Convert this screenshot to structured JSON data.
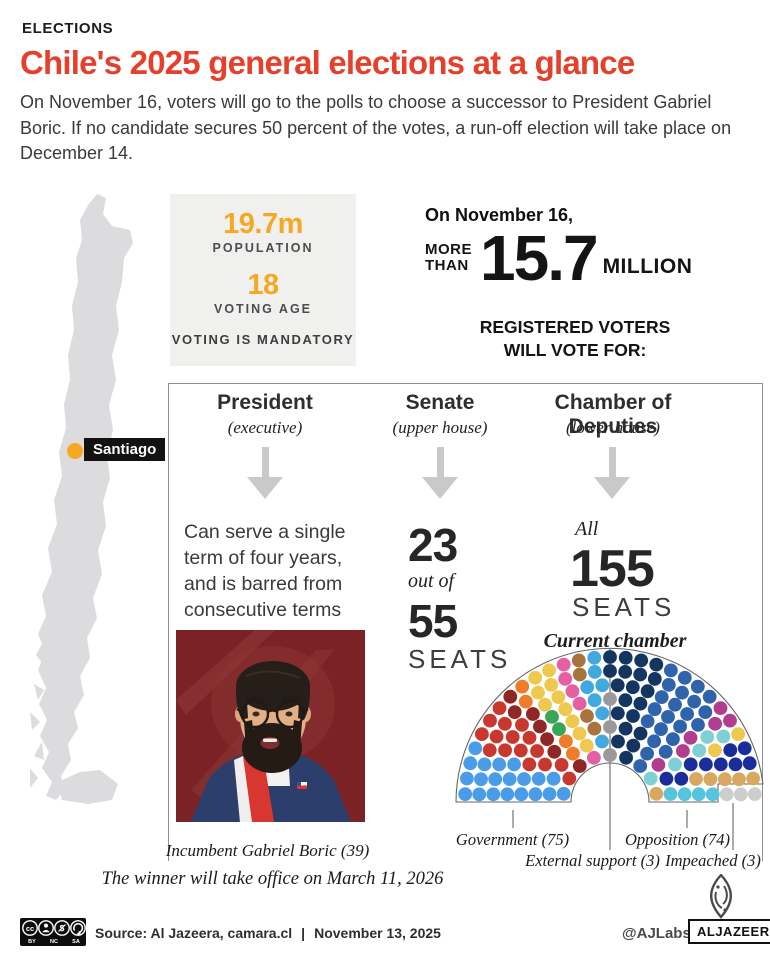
{
  "header": {
    "kicker": "ELECTIONS",
    "title": "Chile's 2025 general elections at a glance",
    "intro": "On November 16, voters will go to the polls to choose a successor to President Gabriel Boric. If no candidate secures 50 percent of the votes, a run-off election will take place on December 14."
  },
  "map": {
    "city_label": "Santiago"
  },
  "stats": {
    "population_value": "19.7m",
    "population_label": "POPULATION",
    "voting_age_value": "18",
    "voting_age_label": "VOTING AGE",
    "mandatory": "VOTING IS MANDATORY"
  },
  "voters": {
    "date": "On November 16,",
    "more": "MORE",
    "than": "THAN",
    "value": "15.7",
    "unit": "MILLION",
    "line1": "REGISTERED VOTERS",
    "line2": "WILL VOTE FOR:"
  },
  "columns": {
    "president": {
      "title": "President",
      "subtitle": "(executive)",
      "description": "Can serve a single term of four years, and is barred from consecutive terms",
      "photo_caption": "Incumbent Gabriel Boric (39)",
      "note": "The winner will take office on March 11, 2026"
    },
    "senate": {
      "title": "Senate",
      "subtitle": "(upper house)",
      "contested": "23",
      "out_of": "out of",
      "total": "55",
      "seats_label": "SEATS"
    },
    "chamber": {
      "title": "Chamber of Deputies",
      "subtitle": "(lower house)",
      "all": "All",
      "total": "155",
      "seats_label": "SEATS",
      "chart_title": "Current chamber"
    }
  },
  "chart_data": {
    "type": "parliament-hemicycle",
    "title": "Current chamber",
    "total_seats": 155,
    "groups": [
      {
        "name": "Government",
        "seats": 75,
        "label": "Government (75)"
      },
      {
        "name": "External support",
        "seats": 3,
        "label": "External support (3)"
      },
      {
        "name": "Opposition",
        "seats": 74,
        "label": "Opposition (74)"
      },
      {
        "name": "Impeached",
        "seats": 3,
        "label": "Impeached (3)"
      }
    ],
    "blocs": [
      {
        "group": "Government",
        "color": "#4a9ce8",
        "count": 20
      },
      {
        "group": "Government",
        "color": "#c8382e",
        "count": 16
      },
      {
        "group": "Government",
        "color": "#8f2726",
        "count": 7
      },
      {
        "group": "Government",
        "color": "#ee7c2b",
        "count": 4
      },
      {
        "group": "Government",
        "color": "#3aa558",
        "count": 2
      },
      {
        "group": "Government",
        "color": "#eec84f",
        "count": 10
      },
      {
        "group": "Government",
        "color": "#e560a2",
        "count": 5
      },
      {
        "group": "Government",
        "color": "#a8743c",
        "count": 4
      },
      {
        "group": "Government",
        "color": "#41a8e0",
        "count": 7
      },
      {
        "group": "External support",
        "color": "#999999",
        "count": 3
      },
      {
        "group": "Opposition",
        "color": "#14355f",
        "count": 20
      },
      {
        "group": "Opposition",
        "color": "#2f64ad",
        "count": 22
      },
      {
        "group": "Opposition",
        "color": "#b13d90",
        "count": 6
      },
      {
        "group": "Opposition",
        "color": "#7ed0d6",
        "count": 5
      },
      {
        "group": "Opposition",
        "color": "#eec84f",
        "count": 2
      },
      {
        "group": "Opposition",
        "color": "#1b2d9b",
        "count": 9
      },
      {
        "group": "Opposition",
        "color": "#d9a860",
        "count": 6
      },
      {
        "group": "Opposition",
        "color": "#57c4dd",
        "count": 4
      },
      {
        "group": "Impeached",
        "color": "#cdcdcd",
        "count": 3
      }
    ]
  },
  "footer": {
    "license": "BY NC SA",
    "source": "Source:  Al Jazeera, camara.cl",
    "separator": "|",
    "date": "November 13, 2025",
    "credit": "@AJLabs",
    "brand": "ALJAZEERA"
  },
  "colors": {
    "accent_red": "#e5402b",
    "accent_orange": "#f7a823",
    "map_gray": "#dcdcde",
    "outline_gray": "#666666"
  }
}
